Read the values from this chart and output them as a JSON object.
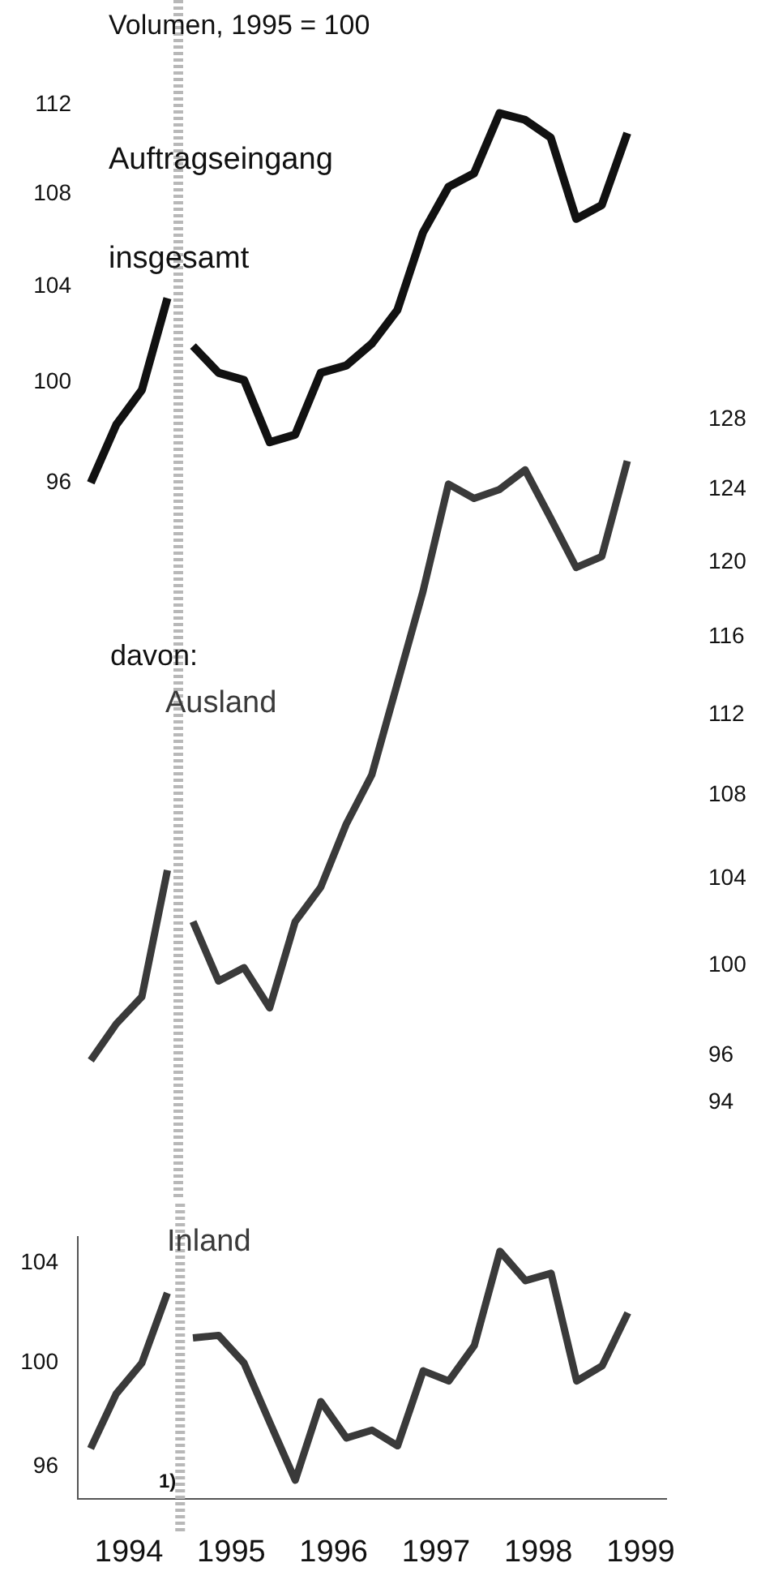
{
  "chart_data": [
    {
      "type": "line",
      "title": "Volumen, 1995 = 100",
      "categories": [
        null,
        null,
        null,
        null,
        null,
        null,
        null,
        null,
        null,
        null,
        null,
        null,
        null,
        null,
        null,
        null,
        null,
        null,
        null,
        null,
        null,
        null
      ],
      "series": [
        {
          "color": "#111111",
          "values": [
            96.0,
            98.3,
            99.7,
            103.5,
            null,
            null,
            null,
            null,
            null,
            null,
            null,
            null,
            null,
            null,
            null,
            null,
            null,
            null,
            null,
            null,
            null,
            null
          ]
        },
        {
          "name": "Auftragseingang insgesamt",
          "color": "#111111",
          "values": [
            null,
            null,
            null,
            null,
            101.5,
            100.4,
            100.1,
            97.6,
            97.9,
            100.4,
            100.7,
            101.6,
            103.0,
            106.3,
            108.3,
            108.9,
            111.6,
            111.3,
            110.5,
            106.9,
            107.5,
            110.7
          ]
        }
      ],
      "ylim": [
        96,
        112
      ],
      "yticks": [
        96,
        100,
        104,
        108,
        112
      ],
      "log": true,
      "marker": "none",
      "line_style": "solid",
      "tick_labels": "y"
    },
    {
      "type": "line",
      "annotations": [
        "davon:"
      ],
      "categories": [
        null,
        null,
        null,
        null,
        null,
        null,
        null,
        null,
        null,
        null,
        null,
        null,
        null,
        null,
        null,
        null,
        null,
        null,
        null,
        null,
        null,
        null
      ],
      "series": [
        {
          "color": "#3a3a3a",
          "values": [
            95.8,
            97.4,
            98.6,
            104.4,
            null,
            null,
            null,
            null,
            null,
            null,
            null,
            null,
            null,
            null,
            null,
            null,
            null,
            null,
            null,
            null,
            null,
            null
          ]
        },
        {
          "name": "Ausland",
          "color": "#3a3a3a",
          "values": [
            null,
            null,
            null,
            null,
            102.0,
            99.3,
            99.9,
            98.1,
            102.0,
            103.6,
            106.6,
            109.0,
            113.6,
            118.4,
            124.3,
            123.5,
            124.0,
            125.1,
            122.4,
            119.7,
            120.3,
            125.6
          ]
        }
      ],
      "ylim": [
        94,
        128
      ],
      "yticks": [
        94,
        96,
        100,
        104,
        108,
        112,
        116,
        120,
        124,
        128
      ],
      "log": true,
      "marker": "none",
      "line_style": "solid",
      "tick_labels": "y"
    },
    {
      "type": "line",
      "annotations": [
        "1)"
      ],
      "series": [
        {
          "color": "#3a3a3a",
          "x": [
            1994.125,
            1994.375,
            1994.625,
            1994.875
          ],
          "values": [
            96.7,
            98.8,
            100.0,
            102.8
          ]
        },
        {
          "name": "Inland",
          "color": "#3a3a3a",
          "x": [
            1995.125,
            1995.375,
            1995.625,
            1995.875,
            1996.125,
            1996.375,
            1996.625,
            1996.875,
            1997.125,
            1997.375,
            1997.625,
            1997.875,
            1998.125,
            1998.375,
            1998.625,
            1998.875,
            1999.125,
            1999.375
          ],
          "values": [
            101.0,
            101.1,
            100.0,
            97.7,
            95.5,
            98.5,
            97.1,
            97.4,
            96.8,
            99.7,
            99.3,
            100.7,
            104.5,
            103.3,
            103.6,
            99.3,
            99.9,
            102.0
          ]
        }
      ],
      "xlim": [
        1994,
        1999.75
      ],
      "xticks": [
        {
          "value": 1994.5,
          "label": "1994"
        },
        {
          "value": 1995.5,
          "label": "1995"
        },
        {
          "value": 1996.5,
          "label": "1996"
        },
        {
          "value": 1997.5,
          "label": "1997"
        },
        {
          "value": 1998.5,
          "label": "1998"
        },
        {
          "value": 1999.5,
          "label": "1999"
        }
      ],
      "ylim": [
        94.8,
        105.1
      ],
      "yticks": [
        96,
        100,
        104
      ],
      "log": true,
      "marker": "none",
      "line_style": "solid",
      "ref_lines": [
        {
          "axis": "x",
          "value": 1995,
          "label": null,
          "color": "#b8b8b8",
          "line_style": "dotted"
        }
      ]
    }
  ]
}
